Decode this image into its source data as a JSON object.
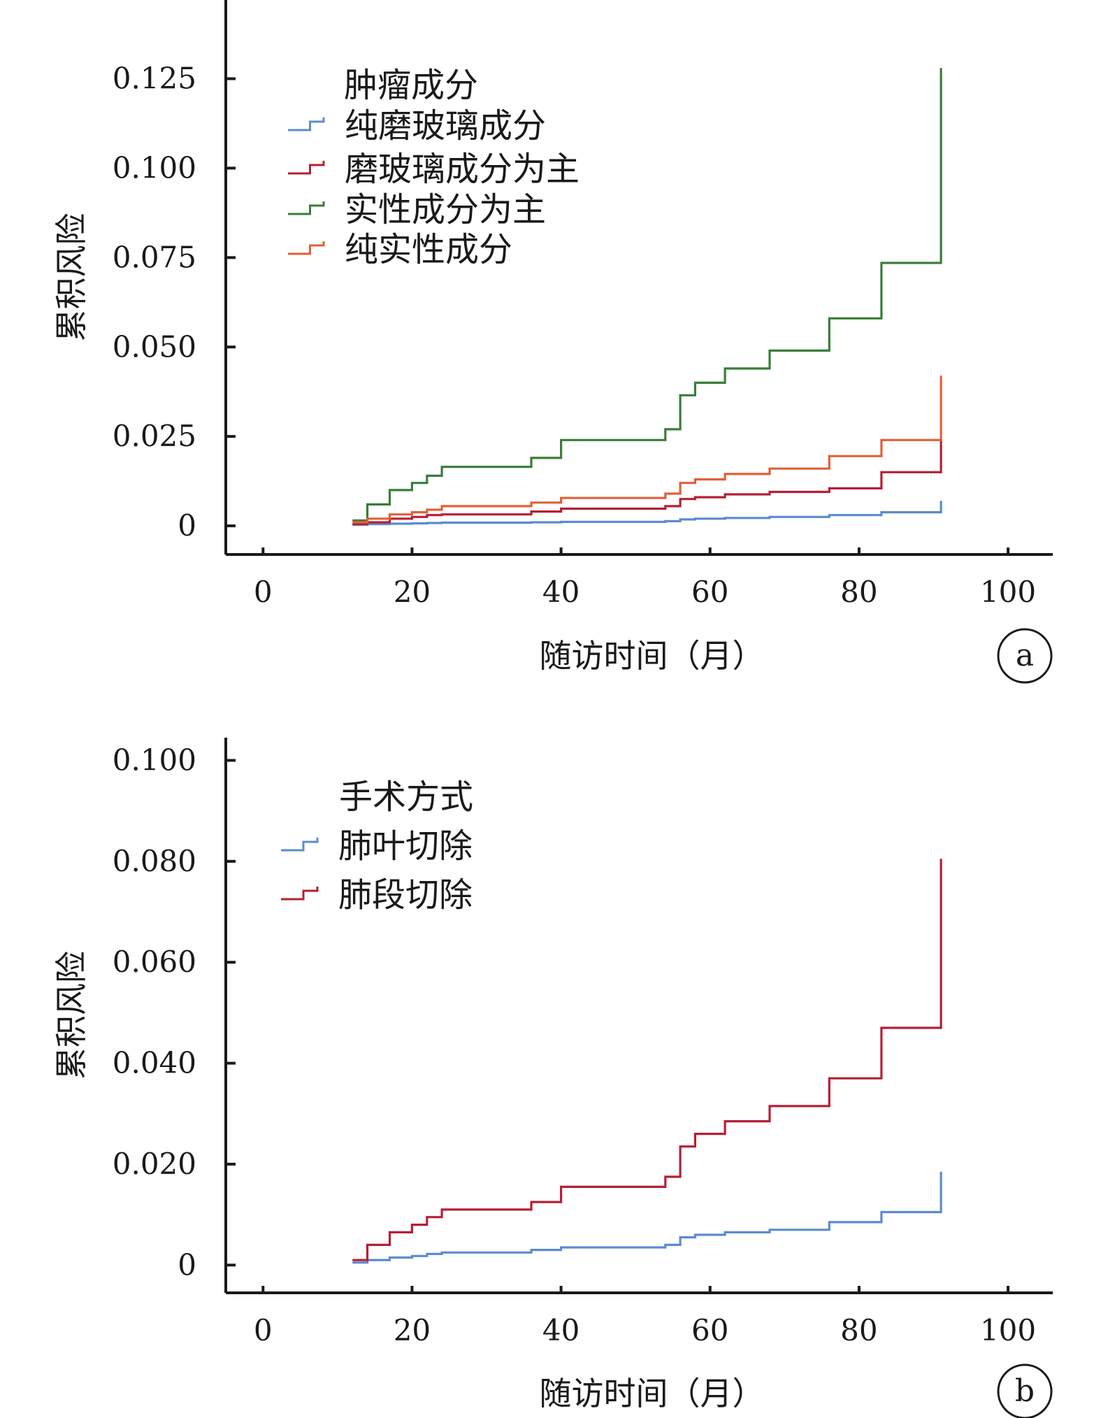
{
  "chart_data": [
    {
      "type": "line",
      "step": true,
      "panel_label": "a",
      "xlabel": "随访时间（月）",
      "ylabel": "累积风险",
      "xlim": [
        -5,
        106
      ],
      "ylim": [
        -0.008,
        0.147
      ],
      "xticks": [
        0,
        20,
        40,
        60,
        80,
        100
      ],
      "yticks": [
        0,
        0.025,
        0.05,
        0.075,
        0.1,
        0.125
      ],
      "ytick_labels": [
        "0",
        "0.025",
        "0.050",
        "0.075",
        "0.100",
        "0.125"
      ],
      "legend_title": "肿瘤成分",
      "legend_position": "top-left",
      "series": [
        {
          "name": "纯磨玻璃成分",
          "color": "#5b8ccc",
          "x": [
            12,
            14,
            17,
            20,
            22,
            24,
            36,
            40,
            54,
            56,
            58,
            62,
            68,
            76,
            83,
            91,
            91
          ],
          "y": [
            0.0003,
            0.0005,
            0.0006,
            0.0007,
            0.0008,
            0.0009,
            0.001,
            0.0011,
            0.0013,
            0.0018,
            0.002,
            0.0022,
            0.0025,
            0.003,
            0.0038,
            0.004,
            0.007
          ]
        },
        {
          "name": "磨玻璃成分为主",
          "color": "#b52035",
          "x": [
            12,
            14,
            17,
            20,
            22,
            24,
            36,
            40,
            54,
            56,
            58,
            62,
            68,
            76,
            83,
            91,
            91
          ],
          "y": [
            0.0005,
            0.001,
            0.002,
            0.0025,
            0.003,
            0.0032,
            0.004,
            0.0048,
            0.0055,
            0.0075,
            0.008,
            0.0088,
            0.0095,
            0.0105,
            0.015,
            0.0155,
            0.024
          ]
        },
        {
          "name": "实性成分为主",
          "color": "#3a7d3a",
          "x": [
            12,
            14,
            17,
            20,
            22,
            24,
            36,
            40,
            54,
            56,
            58,
            62,
            68,
            76,
            83,
            91,
            91
          ],
          "y": [
            0.0015,
            0.006,
            0.01,
            0.012,
            0.014,
            0.0165,
            0.019,
            0.024,
            0.027,
            0.0365,
            0.04,
            0.044,
            0.049,
            0.058,
            0.0735,
            0.0735,
            0.128
          ]
        },
        {
          "name": "纯实性成分",
          "color": "#e0603a",
          "x": [
            12,
            14,
            17,
            20,
            22,
            24,
            36,
            40,
            54,
            56,
            58,
            62,
            68,
            76,
            83,
            91,
            91
          ],
          "y": [
            0.001,
            0.002,
            0.0032,
            0.0038,
            0.0045,
            0.0055,
            0.0065,
            0.0078,
            0.009,
            0.012,
            0.013,
            0.0145,
            0.016,
            0.0195,
            0.024,
            0.0245,
            0.042
          ]
        }
      ]
    },
    {
      "type": "line",
      "step": true,
      "panel_label": "b",
      "xlabel": "随访时间（月）",
      "ylabel": "累积风险",
      "xlim": [
        -5,
        106
      ],
      "ylim": [
        -0.0055,
        0.1045
      ],
      "xticks": [
        0,
        20,
        40,
        60,
        80,
        100
      ],
      "yticks": [
        0,
        0.02,
        0.04,
        0.06,
        0.08,
        0.1
      ],
      "ytick_labels": [
        "0",
        "0.020",
        "0.040",
        "0.060",
        "0.080",
        "0.100"
      ],
      "legend_title": "手术方式",
      "legend_position": "top-left",
      "series": [
        {
          "name": "肺叶切除",
          "color": "#5b8ccc",
          "x": [
            12,
            14,
            17,
            20,
            22,
            24,
            36,
            40,
            54,
            56,
            58,
            62,
            68,
            76,
            83,
            91,
            91
          ],
          "y": [
            0.0005,
            0.001,
            0.0015,
            0.0018,
            0.0022,
            0.0025,
            0.003,
            0.0035,
            0.004,
            0.0055,
            0.006,
            0.0065,
            0.007,
            0.0085,
            0.0105,
            0.011,
            0.0185
          ]
        },
        {
          "name": "肺段切除",
          "color": "#b52035",
          "x": [
            12,
            14,
            17,
            20,
            22,
            24,
            36,
            40,
            54,
            56,
            58,
            62,
            68,
            76,
            83,
            91,
            91
          ],
          "y": [
            0.001,
            0.004,
            0.0065,
            0.008,
            0.0095,
            0.011,
            0.0125,
            0.0155,
            0.0175,
            0.0235,
            0.026,
            0.0285,
            0.0315,
            0.037,
            0.047,
            0.047,
            0.0805
          ]
        }
      ]
    }
  ]
}
